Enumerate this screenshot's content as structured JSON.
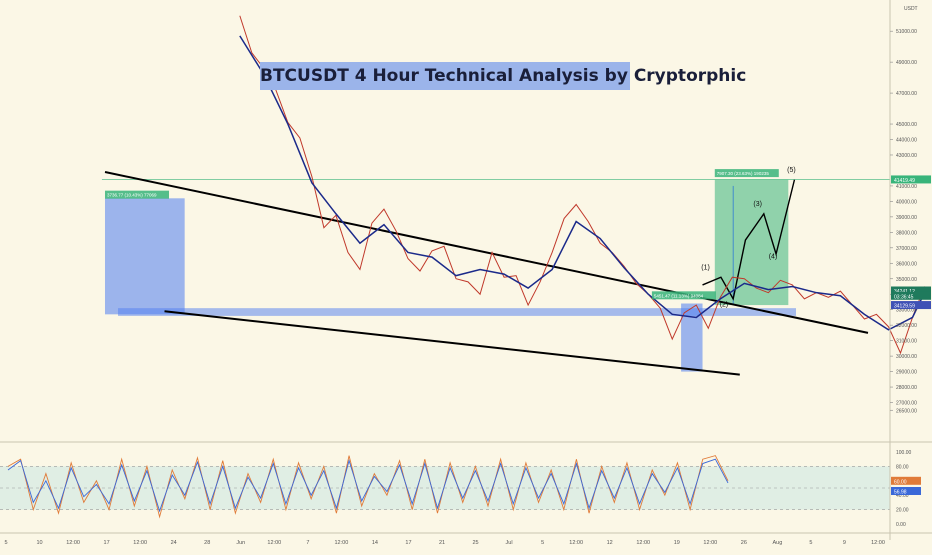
{
  "title": "BTCUSDT 4 Hour Technical Analysis by Cryptorphic",
  "chart_data": [
    {
      "type": "line",
      "title": "BTCUSDT 4 Hour Technical Analysis by Cryptorphic",
      "price_scale_label": "USDT",
      "y_ticks": [
        "51000.00",
        "49000.00",
        "47000.00",
        "45000.00",
        "44000.00",
        "43000.00",
        "41000.00",
        "40000.00",
        "39000.00",
        "38000.00",
        "37000.00",
        "36000.00",
        "35000.00",
        "34000.00",
        "33000.00",
        "32000.00",
        "31000.00",
        "30000.00",
        "29000.00",
        "28000.00",
        "27000.00",
        "26500.00"
      ],
      "ylim": [
        26000,
        52500
      ],
      "x_ticks": [
        "5",
        "10",
        "12:00",
        "17",
        "12:00",
        "24",
        "28",
        "Jun",
        "12:00",
        "7",
        "12:00",
        "14",
        "17",
        "21",
        "25",
        "Jul",
        "5",
        "12:00",
        "12",
        "12:00",
        "19",
        "12:00",
        "26",
        "Aug",
        "5",
        "9",
        "12:00"
      ],
      "price_series": {
        "name": "BTCUSDT 4H",
        "x": [
          0,
          4,
          8,
          12,
          16,
          20,
          24,
          28,
          32,
          36,
          40,
          44,
          48,
          52,
          56,
          60,
          64,
          68,
          72,
          76,
          80,
          84,
          88,
          92,
          96,
          100,
          104,
          108,
          112,
          116,
          120,
          124,
          128,
          132,
          136,
          140,
          144,
          148,
          152,
          156,
          160,
          164,
          168,
          172,
          176,
          180,
          184,
          188,
          192,
          196,
          200,
          204,
          208,
          212,
          216,
          220,
          224,
          228
        ],
        "y": [
          52000,
          49600,
          48600,
          47200,
          45100,
          44100,
          41600,
          38300,
          39100,
          36700,
          35600,
          38600,
          39500,
          38100,
          36300,
          35500,
          36800,
          37100,
          35000,
          34800,
          34000,
          36700,
          35100,
          35200,
          33300,
          34800,
          36700,
          38900,
          39800,
          38700,
          37300,
          36700,
          35800,
          34700,
          34000,
          33100,
          31100,
          32800,
          33300,
          31800,
          33800,
          35100,
          35000,
          34400,
          34100,
          34900,
          34600,
          33700,
          34100,
          33800,
          34200,
          33300,
          32400,
          32700,
          31900,
          30200,
          32500,
          34500
        ]
      },
      "moving_average": {
        "x": [
          0,
          8,
          16,
          24,
          32,
          40,
          48,
          56,
          64,
          72,
          80,
          88,
          96,
          104,
          112,
          120,
          128,
          136,
          144,
          152,
          160,
          168,
          176,
          184,
          192,
          200,
          208,
          216,
          224,
          228
        ],
        "y": [
          50700,
          48200,
          45000,
          41200,
          39200,
          37300,
          38500,
          36700,
          36400,
          35200,
          35600,
          35300,
          34400,
          35600,
          38700,
          37600,
          35700,
          34000,
          32700,
          32500,
          33700,
          34700,
          34300,
          34500,
          34100,
          33900,
          32700,
          31700,
          32500,
          34100
        ]
      },
      "trend_lines": {
        "upper": {
          "x": [
            0,
            280
          ],
          "y": [
            41900,
            31500
          ]
        },
        "lower": {
          "x": [
            8,
            230
          ],
          "y": [
            32900,
            28800
          ]
        },
        "support_zone": [
          33100,
          32600
        ]
      },
      "price_labels": {
        "current": "34241.12",
        "countdown": "03:36:45",
        "support": "34129.59",
        "target": "41419.49"
      },
      "measure_labels": {
        "left": "3736.77 (10.43%) 77069",
        "mid": "5451.47 (11.13%) 94084",
        "target": "7907.30 (23.63%) 190235"
      },
      "wave_labels": [
        "(1)",
        "(2)",
        "(3)",
        "(4)",
        "(5)"
      ],
      "colors": {
        "price_line": "#c0392b",
        "moving_average": "#1b2a8a",
        "blue_zone": "#4f7df0",
        "green_zone": "#38b47a",
        "trend_line": "#000000"
      }
    },
    {
      "type": "line",
      "title": "",
      "indicator_ticks": [
        "100.00",
        "80.00",
        "40.00",
        "20.00",
        "0.00"
      ],
      "current_values": [
        "60.00",
        "56.98"
      ],
      "ylim": [
        0,
        100
      ],
      "band": [
        20,
        80
      ],
      "series": [
        {
          "x": [
            0,
            4,
            8,
            12,
            16,
            20,
            24,
            28,
            32,
            36,
            40,
            44,
            48,
            52,
            56,
            60,
            64,
            68,
            72,
            76,
            80,
            84,
            88,
            92,
            96,
            100,
            104,
            108,
            112,
            116,
            120,
            124,
            128,
            132,
            136,
            140,
            144,
            148,
            152,
            156,
            160,
            164,
            168,
            172,
            176,
            180,
            184,
            188,
            192,
            196,
            200,
            204,
            208,
            212,
            216,
            220,
            224,
            228
          ],
          "y": [
            80,
            90,
            20,
            70,
            15,
            85,
            30,
            60,
            20,
            90,
            25,
            80,
            10,
            75,
            35,
            92,
            20,
            88,
            15,
            70,
            30,
            90,
            20,
            85,
            35,
            80,
            15,
            95,
            25,
            70,
            40,
            88,
            20,
            90,
            15,
            85,
            30,
            80,
            25,
            90,
            20,
            85,
            30,
            75,
            20,
            90,
            15,
            80,
            30,
            85,
            20,
            75,
            40,
            85,
            20,
            90,
            95,
            60
          ]
        },
        {
          "x": [
            0,
            4,
            8,
            12,
            16,
            20,
            24,
            28,
            32,
            36,
            40,
            44,
            48,
            52,
            56,
            60,
            64,
            68,
            72,
            76,
            80,
            84,
            88,
            92,
            96,
            100,
            104,
            108,
            112,
            116,
            120,
            124,
            128,
            132,
            136,
            140,
            144,
            148,
            152,
            156,
            160,
            164,
            168,
            172,
            176,
            180,
            184,
            188,
            192,
            196,
            200,
            204,
            208,
            212,
            216,
            220,
            224,
            228
          ],
          "y": [
            75,
            88,
            30,
            60,
            22,
            78,
            38,
            55,
            28,
            82,
            32,
            74,
            18,
            68,
            40,
            86,
            28,
            80,
            22,
            65,
            36,
            84,
            28,
            78,
            40,
            74,
            22,
            88,
            32,
            66,
            45,
            82,
            28,
            84,
            22,
            78,
            36,
            74,
            32,
            84,
            28,
            78,
            36,
            70,
            28,
            84,
            22,
            74,
            36,
            78,
            28,
            70,
            44,
            78,
            28,
            84,
            90,
            57
          ]
        }
      ],
      "colors": {
        "series_a": "#e07b39",
        "series_b": "#3a68d8",
        "band_fill": "#d9ebe4"
      }
    }
  ]
}
